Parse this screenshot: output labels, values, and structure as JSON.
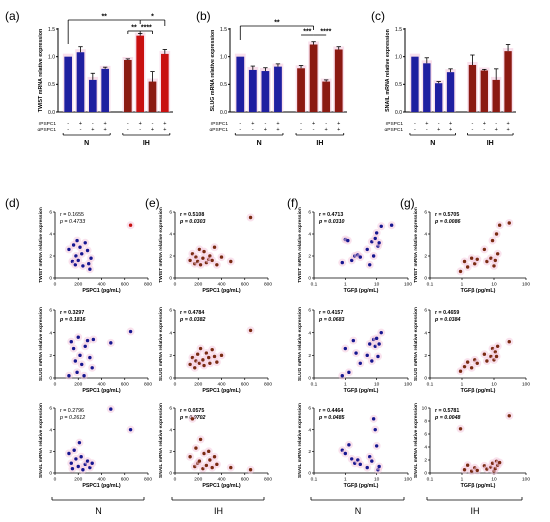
{
  "colors": {
    "blue": "#1f1fa0",
    "red": "#8b1a12",
    "brightRed": "#c81010",
    "dotBlue": "#161690",
    "dotBrown": "#7a2a12",
    "pinkGlow": "#f4c6dc"
  },
  "bar_panels": [
    {
      "label": "(a)",
      "ylabel": "TWIST mRNA relative expression",
      "yticks": [
        "0.0",
        "0.5",
        "1.0",
        "1.5"
      ],
      "ylim": [
        0,
        1.5
      ],
      "group_labels": [
        "N",
        "IH"
      ],
      "row_labels": [
        "rPSPC1",
        "αPSPC1"
      ],
      "row1_marks": [
        "-",
        "+",
        "-",
        "+",
        "-",
        "+",
        "-",
        "+"
      ],
      "row2_marks": [
        "-",
        "-",
        "+",
        "+",
        "-",
        "-",
        "+",
        "+"
      ],
      "significance": [
        "**",
        "**",
        "*",
        "****"
      ]
    },
    {
      "label": "(b)",
      "ylabel": "SLUG mRNA relative expression",
      "yticks": [
        "0.0",
        "0.5",
        "1.0",
        "1.5"
      ],
      "ylim": [
        0,
        1.5
      ],
      "group_labels": [
        "N",
        "IH"
      ],
      "row_labels": [
        "rPSPC1",
        "αPSPC1"
      ],
      "row1_marks": [
        "-",
        "+",
        "-",
        "+",
        "-",
        "+",
        "-",
        "+"
      ],
      "row2_marks": [
        "-",
        "-",
        "+",
        "+",
        "-",
        "-",
        "+",
        "+"
      ],
      "significance": [
        "**",
        "***",
        "****"
      ]
    },
    {
      "label": "(c)",
      "ylabel": "SNAIL mRNA relative expression",
      "yticks": [
        "0.0",
        "0.5",
        "1.0",
        "1.5"
      ],
      "ylim": [
        0,
        1.5
      ],
      "group_labels": [
        "N",
        "IH"
      ],
      "row_labels": [
        "rPSPC1",
        "αPSPC1"
      ],
      "row1_marks": [
        "-",
        "+",
        "-",
        "+",
        "-",
        "+",
        "-",
        "+"
      ],
      "row2_marks": [
        "-",
        "-",
        "+",
        "+",
        "-",
        "-",
        "+",
        "+"
      ],
      "significance": []
    }
  ],
  "scatter_panel_labels": [
    "(d)",
    "(e)",
    "(f)",
    "(g)"
  ],
  "scatter_stats": [
    [
      {
        "r": "r = 0.1655",
        "p": "p = 0.4733"
      },
      {
        "r": "r = 0.5108",
        "p": "p = 0.0303"
      },
      {
        "r": "r = 0.4713",
        "p": "p = 0.0310"
      },
      {
        "r": "r = 0.5705",
        "p": "p = 0.0086"
      }
    ],
    [
      {
        "r": "r = 0.3297",
        "p": "p = 0.1816"
      },
      {
        "r": "r = 0.4784",
        "p": "p = 0.0382"
      },
      {
        "r": "r = 0.4157",
        "p": "p = 0.0683"
      },
      {
        "r": "r = 0.4659",
        "p": "p = 0.0384"
      }
    ],
    [
      {
        "r": "r = 0.2796",
        "p": "p = 0.2612"
      },
      {
        "r": "r = 0.0575",
        "p": "p = 0.9702"
      },
      {
        "r": "r = 0.4464",
        "p": "p = 0.0485"
      },
      {
        "r": "r = 0.5781",
        "p": "p = 0.0048"
      }
    ]
  ],
  "scatter_ylabels": [
    "TWIST mRNA relative expression",
    "SLUG mRNA relative expression",
    "SNAIL mRNA relative expression"
  ],
  "scatter_xlabels": [
    "PSPC1 (pg/mL)",
    "PSPC1 (pg/mL)",
    "TGFβ (pg/mL)",
    "TGFβ (pg/mL)"
  ],
  "linear_xticks": [
    "0",
    "200",
    "400",
    "600",
    "800"
  ],
  "log_xticks": [
    "0.1",
    "1",
    "10",
    "100"
  ],
  "yticks_0_6": [
    "0",
    "2",
    "4",
    "6"
  ],
  "yticks_0_10": [
    "0",
    "2",
    "4",
    "6",
    "8",
    "10"
  ],
  "bottom_group_labels": [
    "N",
    "IH",
    "N",
    "IH"
  ],
  "chart_data": [
    {
      "type": "bar",
      "panel": "(a)",
      "ylabel": "TWIST mRNA relative expression",
      "ylim": [
        0,
        1.5
      ],
      "categories": [
        "N -/-",
        "N +/-",
        "N -/+",
        "N +/+",
        "IH -/-",
        "IH +/-",
        "IH -/+",
        "IH +/+"
      ],
      "values": [
        1.0,
        1.08,
        0.58,
        0.78,
        0.94,
        1.38,
        0.55,
        1.05
      ],
      "errors": [
        0.0,
        0.1,
        0.12,
        0.03,
        0.02,
        0.04,
        0.18,
        0.08
      ]
    },
    {
      "type": "bar",
      "panel": "(b)",
      "ylabel": "SLUG mRNA relative expression",
      "ylim": [
        0,
        1.5
      ],
      "categories": [
        "N -/-",
        "N +/-",
        "N -/+",
        "N +/+",
        "IH -/-",
        "IH +/-",
        "IH -/+",
        "IH +/+"
      ],
      "values": [
        1.0,
        0.76,
        0.74,
        0.82,
        0.79,
        1.22,
        0.55,
        1.13
      ],
      "errors": [
        0.0,
        0.07,
        0.06,
        0.05,
        0.05,
        0.05,
        0.03,
        0.05
      ]
    },
    {
      "type": "bar",
      "panel": "(c)",
      "ylabel": "SNAIL mRNA relative expression",
      "ylim": [
        0,
        1.5
      ],
      "categories": [
        "N -/-",
        "N +/-",
        "N -/+",
        "N +/+",
        "IH -/-",
        "IH +/-",
        "IH -/+",
        "IH +/+"
      ],
      "values": [
        1.0,
        0.88,
        0.52,
        0.72,
        0.85,
        0.75,
        0.58,
        1.1
      ],
      "errors": [
        0.0,
        0.1,
        0.03,
        0.06,
        0.18,
        0.02,
        0.2,
        0.12
      ]
    },
    {
      "type": "scatter",
      "panel": "(d)",
      "group": "N",
      "xlabel": "PSPC1 (pg/mL)",
      "xlim": [
        0,
        800
      ],
      "xscale": "linear",
      "rows": [
        {
          "ylabel": "TWIST mRNA relative expression",
          "ylim": [
            0,
            6
          ],
          "r": "0.1655",
          "p": "0.4733",
          "x": [
            120,
            150,
            160,
            175,
            180,
            190,
            200,
            215,
            230,
            240,
            260,
            280,
            290,
            300,
            310,
            650
          ],
          "y": [
            2.6,
            1.5,
            3.0,
            1.2,
            2.0,
            3.4,
            1.6,
            2.8,
            2.2,
            1.1,
            3.2,
            2.5,
            1.3,
            0.8,
            1.8,
            4.8
          ]
        },
        {
          "ylabel": "SLUG mRNA relative expression",
          "ylim": [
            0,
            6
          ],
          "r": "0.3297",
          "p": "0.1816",
          "x": [
            120,
            140,
            160,
            175,
            190,
            200,
            215,
            230,
            250,
            260,
            280,
            300,
            320,
            330,
            480,
            650
          ],
          "y": [
            0.2,
            3.2,
            2.6,
            1.5,
            0.5,
            3.6,
            2.0,
            1.2,
            0.2,
            2.8,
            3.3,
            1.8,
            0.9,
            3.4,
            3.1,
            4.1
          ]
        },
        {
          "ylabel": "SNAIL mRNA relative expression",
          "ylim": [
            0,
            6
          ],
          "r": "0.2796",
          "p": "0.2612",
          "x": [
            120,
            140,
            150,
            165,
            180,
            200,
            210,
            225,
            240,
            260,
            280,
            300,
            320,
            480,
            650
          ],
          "y": [
            1.8,
            0.9,
            0.4,
            2.1,
            1.3,
            0.6,
            2.8,
            1.5,
            0.3,
            0.8,
            1.1,
            0.5,
            0.9,
            5.9,
            4.0
          ]
        }
      ]
    },
    {
      "type": "scatter",
      "panel": "(e)",
      "group": "IH",
      "xlabel": "PSPC1 (pg/mL)",
      "xlim": [
        0,
        800
      ],
      "xscale": "linear",
      "rows": [
        {
          "ylabel": "TWIST mRNA relative expression",
          "ylim": [
            0,
            6
          ],
          "r": "0.5108",
          "p": "0.0303",
          "x": [
            130,
            150,
            170,
            180,
            195,
            210,
            220,
            240,
            250,
            270,
            290,
            300,
            320,
            340,
            360,
            400,
            480,
            650
          ],
          "y": [
            1.6,
            2.2,
            1.3,
            1.9,
            1.5,
            2.6,
            1.2,
            1.8,
            2.4,
            1.4,
            1.7,
            2.0,
            1.6,
            2.8,
            1.2,
            1.9,
            1.5,
            5.5
          ]
        },
        {
          "ylabel": "SLUG mRNA relative expression",
          "ylim": [
            0,
            6
          ],
          "r": "0.4784",
          "p": "0.0382",
          "x": [
            130,
            150,
            170,
            180,
            195,
            210,
            220,
            240,
            250,
            270,
            290,
            300,
            320,
            340,
            360,
            400,
            650
          ],
          "y": [
            1.2,
            1.8,
            0.9,
            1.5,
            2.1,
            1.3,
            2.6,
            1.6,
            1.1,
            2.2,
            1.8,
            1.3,
            2.5,
            1.9,
            1.4,
            2.0,
            4.2
          ]
        },
        {
          "ylabel": "SNAIL mRNA relative expression",
          "ylim": [
            0,
            6
          ],
          "r": "0.0575",
          "p": "0.9702",
          "x": [
            130,
            150,
            170,
            180,
            195,
            210,
            220,
            240,
            250,
            270,
            290,
            300,
            320,
            340,
            360,
            480,
            650
          ],
          "y": [
            1.5,
            5.0,
            0.6,
            2.3,
            0.9,
            1.1,
            3.1,
            0.4,
            1.8,
            0.7,
            2.0,
            1.2,
            0.5,
            1.5,
            0.8,
            0.5,
            0.3
          ]
        }
      ]
    },
    {
      "type": "scatter",
      "panel": "(f)",
      "group": "N",
      "xlabel": "TGFβ (pg/mL)",
      "xlim": [
        0.1,
        100
      ],
      "xscale": "log",
      "rows": [
        {
          "ylabel": "TWIST mRNA relative expression",
          "ylim": [
            0,
            6
          ],
          "r": "0.4713",
          "p": "0.0310",
          "x": [
            0.8,
            1.0,
            1.2,
            1.6,
            2.0,
            2.5,
            3.0,
            5.0,
            6.0,
            7.0,
            8.0,
            9.0,
            10.0,
            11.0,
            12.0,
            14.0,
            30.0
          ],
          "y": [
            1.4,
            3.5,
            3.4,
            1.6,
            2.0,
            2.1,
            1.9,
            2.6,
            1.2,
            3.3,
            2.0,
            3.6,
            4.1,
            2.9,
            3.2,
            4.7,
            4.8
          ]
        },
        {
          "ylabel": "SLUG mRNA relative expression",
          "ylim": [
            0,
            6
          ],
          "r": "0.4157",
          "p": "0.0683",
          "x": [
            0.8,
            1.0,
            1.3,
            1.8,
            2.2,
            3.0,
            5.0,
            6.0,
            7.0,
            8.0,
            9.0,
            10.0,
            11.0,
            12.0,
            14.0
          ],
          "y": [
            0.2,
            2.6,
            0.5,
            3.3,
            2.2,
            1.3,
            2.0,
            3.0,
            1.5,
            3.4,
            2.8,
            3.5,
            1.9,
            3.0,
            4.0
          ]
        },
        {
          "ylabel": "SNAIL mRNA relative expression",
          "ylim": [
            0,
            6
          ],
          "r": "0.4464",
          "p": "0.0485",
          "x": [
            0.8,
            1.0,
            1.3,
            1.6,
            2.0,
            2.5,
            3.0,
            5.0,
            6.0,
            7.0,
            8.0,
            9.0,
            10.0,
            11.0,
            12.0
          ],
          "y": [
            2.1,
            1.8,
            2.6,
            1.3,
            0.9,
            1.2,
            0.8,
            0.5,
            1.5,
            1.1,
            5.0,
            4.0,
            2.5,
            0.3,
            0.6
          ]
        }
      ]
    },
    {
      "type": "scatter",
      "panel": "(g)",
      "group": "IH",
      "xlabel": "TGFβ (pg/mL)",
      "xlim": [
        0.1,
        100
      ],
      "xscale": "log",
      "rows": [
        {
          "ylabel": "TWIST mRNA relative expression",
          "ylim": [
            0,
            6
          ],
          "r": "0.5705",
          "p": "0.0086",
          "x": [
            0.9,
            1.2,
            1.5,
            2.0,
            2.5,
            3.0,
            5.0,
            6.0,
            8.0,
            9.0,
            10.0,
            11.0,
            12.0,
            13.0,
            15.0,
            30.0
          ],
          "y": [
            0.6,
            1.5,
            1.0,
            1.8,
            1.3,
            1.7,
            2.6,
            1.5,
            1.8,
            3.4,
            1.1,
            1.6,
            4.0,
            2.2,
            4.8,
            5.0
          ]
        },
        {
          "ylabel": "SLUG mRNA relative expression",
          "ylim": [
            0,
            6
          ],
          "r": "0.4659",
          "p": "0.0384",
          "x": [
            0.9,
            1.2,
            1.5,
            2.0,
            2.5,
            3.0,
            5.0,
            6.0,
            8.0,
            9.0,
            10.0,
            11.0,
            12.0,
            13.0,
            30.0
          ],
          "y": [
            0.6,
            1.0,
            1.4,
            0.9,
            1.6,
            1.3,
            2.1,
            1.5,
            1.9,
            2.6,
            1.6,
            2.3,
            1.9,
            2.8,
            3.2
          ]
        },
        {
          "ylabel": "SNAIL mRNA relative expression",
          "ylim": [
            0,
            10
          ],
          "r": "0.5781",
          "p": "0.0048",
          "x": [
            0.9,
            1.2,
            1.5,
            2.0,
            2.5,
            3.0,
            5.0,
            6.0,
            8.0,
            9.0,
            10.0,
            11.0,
            12.0,
            13.0,
            15.0,
            30.0
          ],
          "y": [
            6.8,
            0.5,
            1.2,
            0.3,
            0.8,
            0.4,
            1.1,
            0.6,
            0.9,
            1.5,
            0.3,
            0.7,
            1.8,
            1.2,
            1.6,
            8.8
          ]
        }
      ]
    }
  ]
}
